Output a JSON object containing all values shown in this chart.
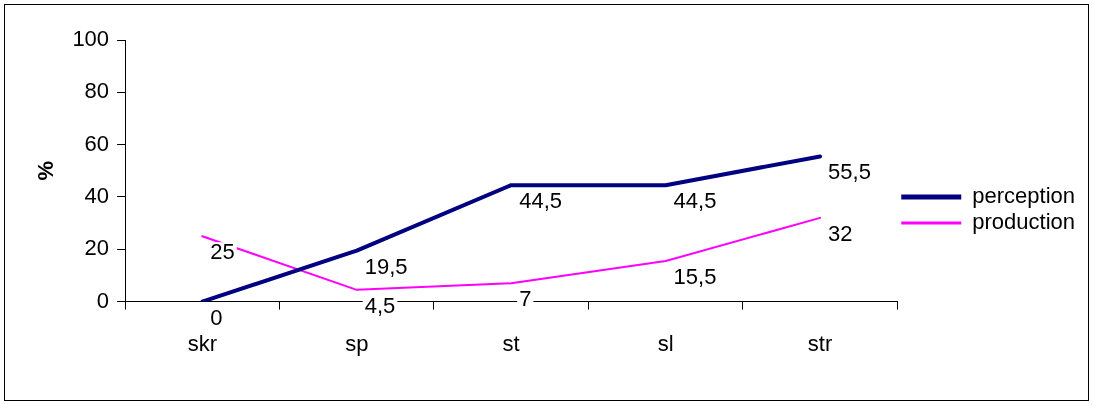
{
  "chart_data": {
    "type": "line",
    "ylabel": "%",
    "categories": [
      "skr",
      "sp",
      "st",
      "sl",
      "str"
    ],
    "series": [
      {
        "name": "perception",
        "color": "#000080",
        "values": [
          0,
          19.5,
          44.5,
          44.5,
          55.5
        ],
        "value_labels": [
          "0",
          "19,5",
          "44,5",
          "44,5",
          "55,5"
        ]
      },
      {
        "name": "production",
        "color": "#ff00ff",
        "values": [
          25,
          4.5,
          7,
          15.5,
          32
        ],
        "value_labels": [
          "25",
          "4,5",
          "7",
          "15,5",
          "32"
        ]
      }
    ],
    "ylim": [
      0,
      100
    ],
    "yticks": [
      0,
      20,
      40,
      60,
      80,
      100
    ],
    "grid": false,
    "legend": "right",
    "marker": "none",
    "line_style": "solid"
  }
}
